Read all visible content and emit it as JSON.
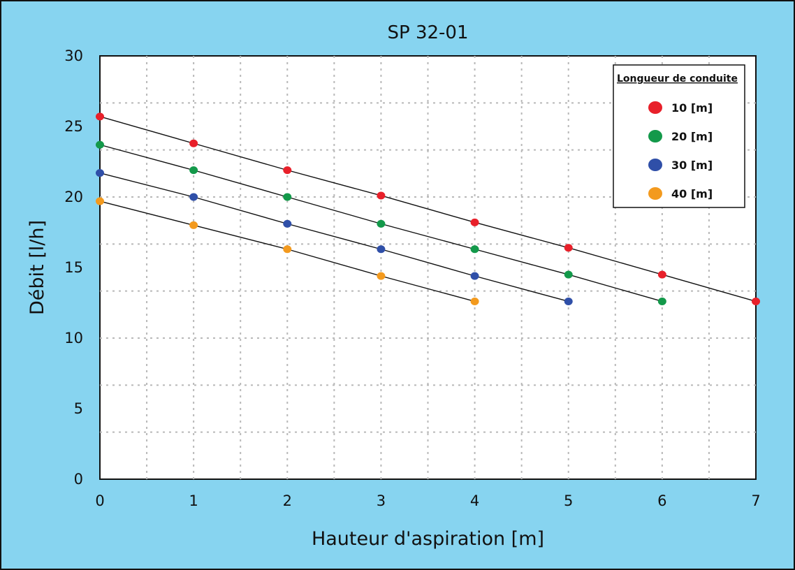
{
  "chart_data": {
    "type": "scatter",
    "title": "SP 32-01",
    "xlabel": "Hauteur d'aspiration [m]",
    "ylabel": "Débit [l/h]",
    "xlim": [
      0,
      7
    ],
    "ylim": [
      0,
      30
    ],
    "xticks": [
      "0",
      "1",
      "2",
      "3",
      "4",
      "5",
      "6",
      "7"
    ],
    "yticks": [
      "0",
      "5",
      "10",
      "15",
      "20",
      "25",
      "30"
    ],
    "grid": true,
    "legend_title": "Longueur de conduite",
    "legend_position": "top-right",
    "series": [
      {
        "name": "10  [m]",
        "color": "#e8202a",
        "x": [
          0,
          1,
          2,
          3,
          4,
          5,
          6,
          7
        ],
        "y": [
          25.7,
          23.8,
          21.9,
          20.1,
          18.2,
          16.4,
          14.5,
          12.6
        ]
      },
      {
        "name": "20  [m]",
        "color": "#13994a",
        "x": [
          0,
          1,
          2,
          3,
          4,
          5,
          6
        ],
        "y": [
          23.7,
          21.9,
          20.0,
          18.1,
          16.3,
          14.5,
          12.6
        ]
      },
      {
        "name": "30  [m]",
        "color": "#2f4fa8",
        "x": [
          0,
          1,
          2,
          3,
          4,
          5
        ],
        "y": [
          21.7,
          20.0,
          18.1,
          16.3,
          14.4,
          12.6
        ]
      },
      {
        "name": "40  [m]",
        "color": "#f39a1e",
        "x": [
          0,
          1,
          2,
          3,
          4
        ],
        "y": [
          19.7,
          18.0,
          16.3,
          14.4,
          12.6
        ]
      }
    ]
  }
}
